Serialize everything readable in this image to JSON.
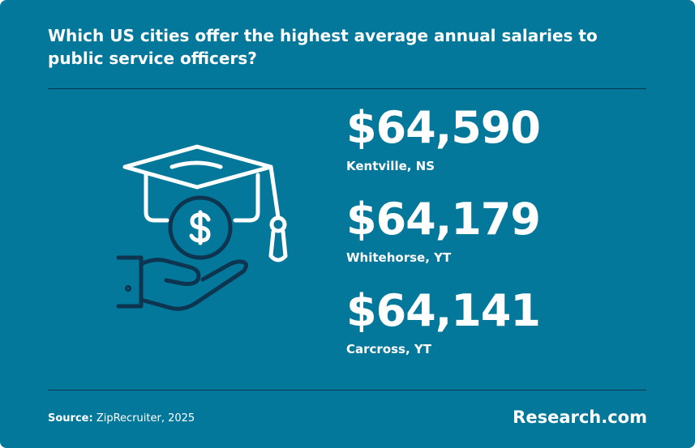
{
  "header": {
    "title": "Which US cities offer the highest average annual salaries to public service officers?"
  },
  "stats": [
    {
      "value": "$64,590",
      "label": "Kentville, NS"
    },
    {
      "value": "$64,179",
      "label": "Whitehorse, YT"
    },
    {
      "value": "$64,141",
      "label": "Carcross, YT"
    }
  ],
  "footer": {
    "source_label": "Source:",
    "source": "ZipRecruiter, 2025",
    "brand": "Research.com"
  }
}
